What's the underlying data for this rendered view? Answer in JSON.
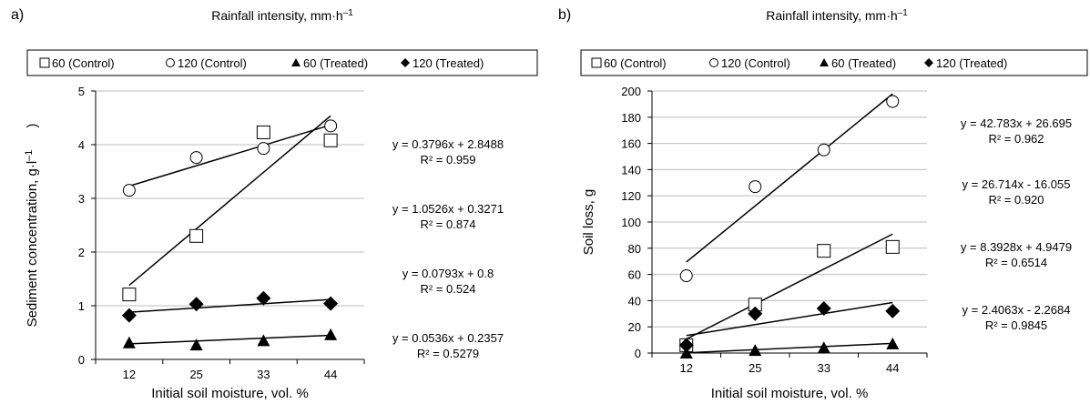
{
  "chart_data": [
    {
      "panel_label": "a)",
      "title_main": "Rainfall intensity, mm·h",
      "title_sup": "–1",
      "type": "scatter",
      "xlabel": "Initial soil moisture, vol. %",
      "ylabel": "Sediment concentration, g·l",
      "ylabel_sup": "–1",
      "ylabel_tail": ")",
      "categories": [
        "12",
        "25",
        "33",
        "44"
      ],
      "ylim": [
        0,
        5
      ],
      "ytick_step": 1,
      "grid": true,
      "legend_position": "top",
      "series": [
        {
          "name": "60 (Control)",
          "marker": "square",
          "values": [
            1.21,
            2.3,
            4.23,
            4.08
          ],
          "trend": {
            "type": "linear",
            "slope": 1.0526,
            "intercept": 0.3271
          }
        },
        {
          "name": "120 (Control)",
          "marker": "circle",
          "values": [
            3.15,
            3.76,
            3.93,
            4.35
          ],
          "trend": {
            "type": "linear",
            "slope": 0.3796,
            "intercept": 2.8488
          }
        },
        {
          "name": "60 (Treated)",
          "marker": "triangle",
          "values": [
            0.31,
            0.27,
            0.35,
            0.46
          ],
          "trend": {
            "type": "linear",
            "slope": 0.0536,
            "intercept": 0.2357
          }
        },
        {
          "name": "120 (Treated)",
          "marker": "diamond",
          "values": [
            0.82,
            1.03,
            1.14,
            1.04
          ],
          "trend": {
            "type": "linear",
            "slope": 0.0793,
            "intercept": 0.8
          }
        }
      ],
      "equations": [
        {
          "eq": "y = 0.3796x + 2.8488",
          "r2": "R² = 0.959"
        },
        {
          "eq": "y = 1.0526x + 0.3271",
          "r2": "R² = 0.874"
        },
        {
          "eq": "y = 0.0793x + 0.8",
          "r2": "R² = 0.524"
        },
        {
          "eq": "y = 0.0536x + 0.2357",
          "r2": "R² = 0.5279"
        }
      ]
    },
    {
      "panel_label": "b)",
      "title_main": "Rainfall intensity, mm·h",
      "title_sup": "–1",
      "type": "scatter",
      "xlabel": "Initial soil moisture, vol. %",
      "ylabel": "Soil loss, g",
      "categories": [
        "12",
        "25",
        "33",
        "44"
      ],
      "ylim": [
        0,
        200
      ],
      "ytick_step": 20,
      "grid": true,
      "legend_position": "top",
      "series": [
        {
          "name": "60 (Control)",
          "marker": "square",
          "values": [
            6,
            37,
            78,
            81
          ],
          "trend": {
            "type": "linear",
            "slope": 26.714,
            "intercept": -16.055
          }
        },
        {
          "name": "120 (Control)",
          "marker": "circle",
          "values": [
            59,
            127,
            155,
            192
          ],
          "trend": {
            "type": "linear",
            "slope": 42.783,
            "intercept": 26.695
          }
        },
        {
          "name": "60 (Treated)",
          "marker": "triangle",
          "values": [
            0,
            2,
            4,
            7
          ],
          "trend": {
            "type": "linear",
            "slope": 2.4063,
            "intercept": -2.2684
          }
        },
        {
          "name": "120 (Treated)",
          "marker": "diamond",
          "values": [
            6,
            30,
            34,
            32
          ],
          "trend": {
            "type": "linear",
            "slope": 8.3928,
            "intercept": 4.9479
          }
        }
      ],
      "equations": [
        {
          "eq": "y = 42.783x + 26.695",
          "r2": "R² = 0.962"
        },
        {
          "eq": "y = 26.714x - 16.055",
          "r2": "R² = 0.920"
        },
        {
          "eq": "y = 8.3928x + 4.9479",
          "r2": "R² = 0.6514"
        },
        {
          "eq": "y = 2.4063x - 2.2684",
          "r2": "R² = 0.9845"
        }
      ]
    }
  ]
}
